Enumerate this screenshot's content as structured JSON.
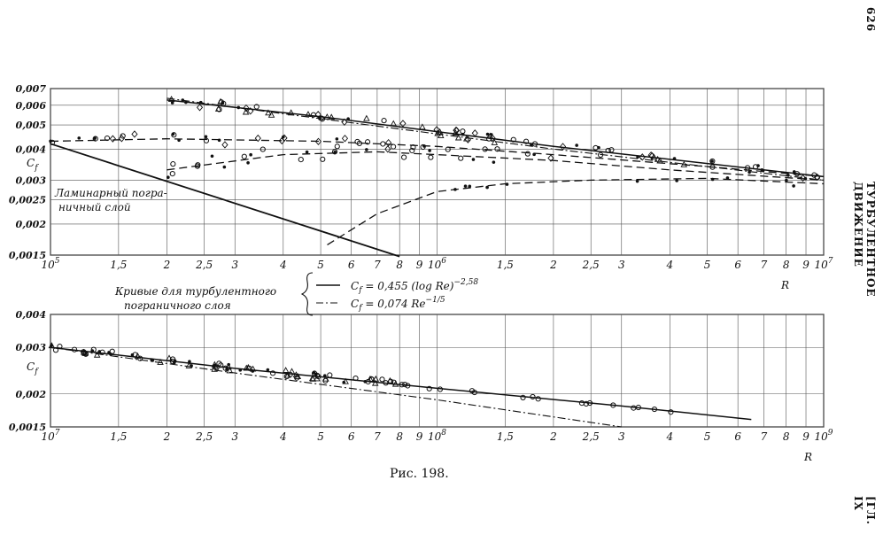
{
  "page_number": "626",
  "running_title": "ТУРБУЛЕНТНОЕ ДВИЖЕНИЕ",
  "chapter": "[ГЛ. IX",
  "caption": "Рис. 198.",
  "legend": {
    "heading_line1": "Кривые для турбулентного",
    "heading_line2": "пограничного слоя",
    "formula1": "C_f = 0,455 (log Re)^-2,58",
    "formula1_main": "= 0,455 (log Re)",
    "formula1_exp": "−2,58",
    "formula2": "C_f = 0,074 Re^-1/5",
    "formula2_main": "= 0,074 Re",
    "formula2_exp": "−1/5",
    "cf_symbol": "C",
    "cf_sub": "f"
  },
  "annotation": {
    "line1": "Ламинарный погра-",
    "line2": "ничный слой"
  },
  "chart_data": [
    {
      "type": "line",
      "xlabel": "R",
      "ylabel": "C_f",
      "xscale": "log",
      "yscale": "log",
      "xlim": [
        100000,
        10000000
      ],
      "ylim": [
        0.0015,
        0.007
      ],
      "x_tick_labels": [
        "10^5",
        "1,5",
        "2",
        "2,5",
        "3",
        "4",
        "5",
        "6",
        "7",
        "8",
        "9",
        "10^6",
        "1,5",
        "2",
        "2,5",
        "3",
        "4",
        "5",
        "6",
        "7",
        "8",
        "9",
        "10^7"
      ],
      "y_tick_labels": [
        "0,007",
        "0,006",
        "0,005",
        "0,004",
        "0,003",
        "0,0025",
        "0,002",
        "0,0015"
      ],
      "series": [
        {
          "name": "C_f = 0,455 (log Re)^-2,58",
          "style": "solid",
          "x": [
            200000,
            500000,
            1000000,
            2000000,
            5000000,
            10000000
          ],
          "y": [
            0.0063,
            0.0054,
            0.0047,
            0.0041,
            0.0035,
            0.0031
          ]
        },
        {
          "name": "C_f = 0,074 Re^-1/5",
          "style": "dash-dot",
          "x": [
            200000,
            500000,
            1000000,
            2000000,
            5000000,
            10000000
          ],
          "y": [
            0.0064,
            0.0053,
            0.0046,
            0.004,
            0.0034,
            0.003
          ]
        },
        {
          "name": "Ламинарный пограничный слой",
          "style": "solid",
          "x": [
            100000,
            800000
          ],
          "y": [
            0.0042,
            0.00148
          ]
        },
        {
          "name": "",
          "style": "dashed",
          "x": [
            100000,
            200000,
            500000,
            1000000,
            2000000,
            5000000,
            10000000
          ],
          "y": [
            0.0043,
            0.0044,
            0.0043,
            0.0041,
            0.0038,
            0.0034,
            0.0031
          ]
        },
        {
          "name": "",
          "style": "dashed",
          "x": [
            200000,
            400000,
            700000,
            1000000,
            2000000,
            4000000,
            10000000
          ],
          "y": [
            0.0033,
            0.0038,
            0.0039,
            0.0038,
            0.0036,
            0.0033,
            0.003
          ]
        },
        {
          "name": "",
          "style": "dashed",
          "x": [
            520000,
            700000,
            1000000,
            1500000,
            2500000,
            5000000,
            10000000
          ],
          "y": [
            0.00165,
            0.0022,
            0.0027,
            0.0029,
            0.003,
            0.00305,
            0.0029
          ]
        }
      ]
    },
    {
      "type": "line",
      "xlabel": "R",
      "ylabel": "C_f",
      "xscale": "log",
      "yscale": "log",
      "xlim": [
        10000000,
        1000000000
      ],
      "ylim": [
        0.0015,
        0.004
      ],
      "x_tick_labels": [
        "10^7",
        "1,5",
        "2",
        "2,5",
        "3",
        "4",
        "5",
        "6",
        "7",
        "8",
        "9",
        "10^8",
        "1,5",
        "2",
        "2,5",
        "3",
        "4",
        "5",
        "6",
        "7",
        "8",
        "9",
        "10^9"
      ],
      "y_tick_labels": [
        "0,004",
        "0,003",
        "0,002",
        "0,0015"
      ],
      "series": [
        {
          "name": "C_f = 0,455 (log Re)^-2,58",
          "style": "solid",
          "x": [
            10000000,
            30000000,
            100000000,
            300000000,
            650000000
          ],
          "y": [
            0.003,
            0.0025,
            0.0021,
            0.0018,
            0.0016
          ]
        },
        {
          "name": "C_f = 0,074 Re^-1/5",
          "style": "dash-dot",
          "x": [
            10000000,
            30000000,
            100000000,
            300000000
          ],
          "y": [
            0.003,
            0.0024,
            0.0019,
            0.0015
          ]
        }
      ]
    }
  ]
}
